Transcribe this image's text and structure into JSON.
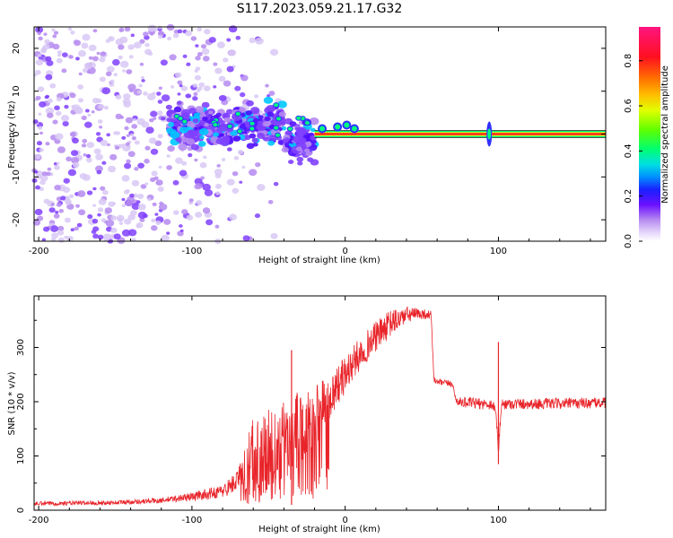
{
  "title": "S117.2023.059.21.17.G32",
  "colors": {
    "signal_line": "#e8242a",
    "band_outline": "#1a1a1a",
    "spectral_scale": [
      "#d8c8f4",
      "#b58af0",
      "#8040ff",
      "#5010ff",
      "#3030ff",
      "#00c8ff",
      "#00ff80",
      "#80ff00",
      "#ffff00",
      "#ffa000",
      "#ff2020",
      "#ff2080"
    ]
  },
  "chart_data": [
    {
      "type": "heatmap",
      "title": "S117.2023.059.21.17.G32",
      "xlabel": "Height of straight line (km)",
      "ylabel": "Frequency (Hz)",
      "xlim": [
        -203,
        170
      ],
      "ylim": [
        -25,
        25
      ],
      "xticks": [
        -200,
        -100,
        0,
        100
      ],
      "xtick_labels": [
        "-200",
        "-100",
        "0",
        "100"
      ],
      "yticks": [
        -20,
        -10,
        0,
        10,
        20
      ],
      "ytick_labels": [
        "-20",
        "-10",
        "0",
        "10",
        "20"
      ],
      "colorbar": {
        "label": "Normalized spectral amplitude",
        "range": [
          0,
          0.95
        ],
        "ticks": [
          0.0,
          0.2,
          0.4,
          0.6,
          0.8
        ],
        "tick_labels": [
          "0.0",
          "0.2",
          "0.4",
          "0.6",
          "0.8"
        ]
      },
      "features": {
        "scatter_region_x": [
          -203,
          -20
        ],
        "scatter_dense_x": [
          -203,
          -120
        ],
        "cluster_region_x": [
          -115,
          -20
        ],
        "steady_line_x": [
          -20,
          170
        ],
        "steady_line_freq": 0.0,
        "spike_x": 94
      }
    },
    {
      "type": "line",
      "xlabel": "Height of straight line (km)",
      "ylabel": "SNR (10 * v/v)",
      "xlim": [
        -203,
        170
      ],
      "ylim": [
        0,
        395
      ],
      "xticks": [
        -200,
        -100,
        0,
        100
      ],
      "xtick_labels": [
        "-200",
        "-100",
        "0",
        "100"
      ],
      "yticks": [
        0,
        100,
        200,
        300
      ],
      "ytick_labels": [
        "0",
        "100",
        "200",
        "300"
      ],
      "series": [
        {
          "name": "SNR",
          "x": [
            -203,
            -180,
            -150,
            -120,
            -100,
            -80,
            -70,
            -60,
            -50,
            -40,
            -30,
            -20,
            -10,
            0,
            10,
            20,
            30,
            40,
            50,
            56,
            58,
            60,
            70,
            72,
            74,
            80,
            95,
            98,
            100,
            102,
            105,
            130,
            170
          ],
          "values": [
            12,
            13,
            14,
            18,
            25,
            35,
            55,
            110,
            115,
            130,
            150,
            170,
            210,
            250,
            290,
            320,
            345,
            360,
            362,
            360,
            240,
            236,
            233,
            205,
            200,
            198,
            195,
            190,
            110,
            195,
            196,
            196,
            198
          ],
          "noise": [
            4,
            4,
            4,
            5,
            8,
            12,
            20,
            60,
            70,
            70,
            70,
            60,
            40,
            35,
            30,
            28,
            25,
            15,
            10,
            8,
            6,
            6,
            6,
            8,
            8,
            10,
            10,
            10,
            10,
            10,
            10,
            10,
            10
          ]
        }
      ],
      "spike_annotations": [
        {
          "x": 100,
          "low": 85,
          "high": 310
        },
        {
          "x": -35,
          "low": 10,
          "high": 295
        }
      ]
    }
  ]
}
